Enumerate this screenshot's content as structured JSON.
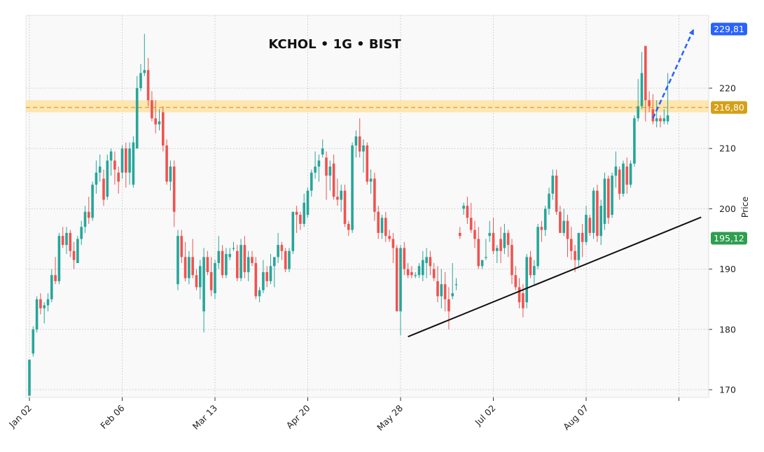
{
  "chart_data": {
    "type": "candlestick",
    "title": "KCHOL • 1G • BIST",
    "ylabel": "Price",
    "xlabel": "",
    "ylim": [
      169,
      232
    ],
    "grid": true,
    "x_tick_labels": [
      "Jan 02",
      "Feb 06",
      "Mar 13",
      "Apr 20",
      "May 28",
      "Jul 02",
      "Aug 07",
      ""
    ],
    "x_tick_bar_index": [
      0,
      25,
      50,
      75,
      100,
      125,
      150,
      175
    ],
    "y_ticks": [
      170,
      180,
      190,
      200,
      210,
      220
    ],
    "colors": {
      "up": "#26a69a",
      "down": "#ef5350",
      "background": "#f9f9f9",
      "zone_fill": "#fde3a7",
      "zone_line": "#e2a43a",
      "trendline": "#111111",
      "projection": "#2962ff"
    },
    "candles": [
      [
        169.0,
        175.0,
        169.0,
        175.0
      ],
      [
        176.0,
        180.5,
        175.5,
        180.0
      ],
      [
        180.0,
        185.5,
        179.5,
        185.0
      ],
      [
        185.0,
        186.0,
        182.5,
        183.5
      ],
      [
        183.5,
        184.5,
        181.0,
        184.0
      ],
      [
        184.0,
        186.0,
        183.0,
        185.0
      ],
      [
        185.0,
        190.0,
        184.5,
        189.0
      ],
      [
        189.0,
        192.0,
        187.5,
        188.0
      ],
      [
        188.0,
        196.0,
        187.5,
        195.5
      ],
      [
        195.5,
        197.0,
        193.5,
        194.0
      ],
      [
        194.0,
        197.0,
        192.5,
        196.0
      ],
      [
        196.0,
        196.5,
        192.0,
        193.0
      ],
      [
        193.0,
        194.5,
        190.0,
        191.5
      ],
      [
        191.0,
        195.5,
        191.0,
        195.0
      ],
      [
        195.0,
        198.0,
        194.0,
        197.0
      ],
      [
        197.0,
        200.5,
        196.0,
        199.5
      ],
      [
        199.5,
        202.0,
        197.5,
        198.5
      ],
      [
        198.5,
        204.5,
        198.0,
        204.0
      ],
      [
        204.0,
        208.0,
        202.5,
        206.0
      ],
      [
        206.0,
        209.0,
        204.5,
        207.0
      ],
      [
        205.0,
        206.5,
        200.5,
        201.5
      ],
      [
        202.0,
        209.0,
        201.5,
        208.0
      ],
      [
        208.0,
        210.0,
        205.5,
        209.5
      ],
      [
        208.0,
        209.5,
        204.0,
        206.5
      ],
      [
        206.0,
        207.0,
        202.5,
        204.5
      ],
      [
        206.0,
        210.5,
        205.0,
        210.0
      ],
      [
        210.0,
        211.0,
        203.5,
        206.0
      ],
      [
        206.0,
        211.0,
        204.0,
        210.0
      ],
      [
        204.0,
        212.0,
        203.5,
        211.0
      ],
      [
        210.0,
        222.0,
        210.0,
        220.0
      ],
      [
        220.0,
        224.0,
        219.5,
        222.5
      ],
      [
        222.5,
        229.0,
        222.0,
        223.0
      ],
      [
        223.0,
        225.0,
        217.0,
        218.0
      ],
      [
        218.0,
        219.5,
        214.5,
        215.0
      ],
      [
        215.0,
        218.0,
        212.5,
        214.0
      ],
      [
        214.0,
        216.5,
        213.0,
        214.5
      ],
      [
        216.0,
        217.0,
        209.5,
        210.5
      ],
      [
        210.5,
        211.5,
        204.0,
        204.5
      ],
      [
        204.5,
        208.0,
        203.0,
        207.0
      ],
      [
        207.0,
        208.0,
        197.0,
        199.5
      ],
      [
        187.5,
        196.5,
        186.5,
        195.5
      ],
      [
        195.5,
        196.5,
        191.0,
        192.0
      ],
      [
        192.0,
        194.5,
        188.0,
        188.5
      ],
      [
        188.5,
        193.0,
        187.5,
        192.0
      ],
      [
        192.0,
        195.0,
        188.5,
        189.0
      ],
      [
        189.0,
        190.0,
        186.5,
        187.0
      ],
      [
        187.0,
        191.5,
        185.0,
        190.5
      ],
      [
        183.0,
        193.5,
        179.5,
        192.0
      ],
      [
        192.0,
        193.0,
        189.0,
        189.5
      ],
      [
        189.5,
        192.0,
        185.5,
        186.5
      ],
      [
        186.0,
        191.5,
        185.0,
        191.0
      ],
      [
        191.0,
        195.5,
        190.0,
        193.0
      ],
      [
        193.0,
        194.0,
        188.5,
        189.0
      ],
      [
        189.0,
        193.5,
        188.5,
        192.5
      ],
      [
        192.0,
        193.5,
        191.5,
        192.5
      ],
      [
        193.5,
        194.5,
        193.0,
        193.5
      ],
      [
        193.0,
        194.0,
        188.0,
        188.5
      ],
      [
        188.5,
        195.0,
        188.0,
        194.0
      ],
      [
        194.0,
        195.5,
        188.5,
        189.5
      ],
      [
        189.5,
        193.0,
        188.0,
        192.0
      ],
      [
        192.0,
        193.0,
        190.5,
        191.0
      ],
      [
        191.0,
        192.0,
        185.0,
        185.5
      ],
      [
        185.5,
        187.0,
        184.5,
        186.5
      ],
      [
        186.5,
        191.5,
        186.0,
        189.5
      ],
      [
        189.5,
        190.5,
        187.0,
        188.0
      ],
      [
        188.0,
        192.5,
        187.5,
        190.5
      ],
      [
        190.5,
        192.0,
        187.0,
        192.0
      ],
      [
        192.0,
        196.0,
        191.0,
        194.0
      ],
      [
        194.0,
        194.5,
        191.5,
        193.0
      ],
      [
        193.0,
        193.5,
        189.5,
        190.0
      ],
      [
        190.0,
        193.5,
        189.5,
        193.0
      ],
      [
        193.0,
        199.5,
        192.5,
        199.5
      ],
      [
        199.5,
        200.5,
        196.0,
        199.0
      ],
      [
        199.0,
        199.5,
        196.5,
        197.5
      ],
      [
        197.5,
        202.5,
        197.0,
        201.0
      ],
      [
        199.0,
        203.5,
        198.5,
        203.0
      ],
      [
        203.0,
        206.5,
        202.0,
        206.0
      ],
      [
        206.0,
        209.5,
        205.0,
        207.0
      ],
      [
        207.0,
        209.0,
        204.5,
        208.0
      ],
      [
        209.0,
        211.5,
        208.5,
        210.0
      ],
      [
        208.5,
        209.5,
        201.5,
        205.5
      ],
      [
        205.5,
        208.0,
        203.0,
        207.0
      ],
      [
        207.5,
        209.0,
        201.5,
        202.0
      ],
      [
        202.0,
        205.0,
        200.5,
        201.5
      ],
      [
        201.5,
        204.0,
        199.5,
        203.0
      ],
      [
        203.0,
        204.0,
        197.0,
        197.5
      ],
      [
        197.5,
        198.0,
        195.5,
        196.5
      ],
      [
        196.5,
        211.0,
        196.0,
        210.5
      ],
      [
        210.5,
        213.0,
        208.5,
        212.0
      ],
      [
        212.0,
        215.0,
        208.5,
        209.5
      ],
      [
        209.5,
        211.5,
        206.0,
        210.5
      ],
      [
        210.5,
        211.0,
        204.0,
        204.5
      ],
      [
        204.5,
        206.5,
        202.5,
        205.0
      ],
      [
        205.0,
        206.0,
        198.0,
        199.5
      ],
      [
        199.5,
        200.5,
        195.0,
        196.0
      ],
      [
        196.0,
        199.0,
        195.0,
        198.5
      ],
      [
        198.5,
        199.5,
        194.5,
        195.5
      ],
      [
        195.5,
        196.5,
        194.5,
        195.0
      ],
      [
        195.0,
        196.0,
        191.0,
        193.5
      ],
      [
        193.5,
        194.0,
        183.0,
        183.0
      ],
      [
        183.0,
        194.0,
        179.0,
        193.5
      ],
      [
        193.5,
        194.5,
        189.0,
        190.0
      ],
      [
        190.0,
        191.0,
        188.5,
        189.0
      ],
      [
        189.5,
        190.5,
        188.5,
        189.0
      ],
      [
        189.0,
        189.5,
        188.5,
        189.0
      ],
      [
        189.0,
        191.0,
        188.5,
        190.5
      ],
      [
        189.0,
        193.0,
        188.0,
        191.5
      ],
      [
        191.0,
        193.5,
        188.5,
        192.0
      ],
      [
        192.0,
        193.0,
        189.0,
        190.5
      ],
      [
        190.0,
        191.0,
        188.0,
        188.5
      ],
      [
        188.0,
        190.5,
        184.5,
        185.5
      ],
      [
        185.5,
        190.0,
        183.5,
        187.5
      ],
      [
        187.5,
        189.5,
        183.0,
        185.0
      ],
      [
        185.0,
        187.0,
        180.0,
        183.0
      ],
      [
        185.5,
        191.0,
        185.0,
        186.0
      ],
      [
        187.5,
        188.5,
        186.5,
        187.5
      ],
      [
        196.0,
        197.0,
        195.0,
        195.5
      ],
      [
        200.0,
        201.0,
        199.0,
        200.5
      ],
      [
        200.5,
        202.0,
        197.5,
        198.5
      ],
      [
        198.5,
        201.0,
        196.0,
        196.5
      ],
      [
        196.5,
        198.0,
        193.5,
        195.0
      ],
      [
        195.0,
        197.0,
        190.0,
        190.5
      ],
      [
        190.5,
        191.5,
        190.0,
        191.5
      ],
      [
        192.0,
        195.0,
        191.5,
        192.0
      ],
      [
        195.5,
        198.0,
        194.5,
        196.0
      ],
      [
        196.0,
        198.5,
        192.5,
        193.0
      ],
      [
        193.0,
        194.0,
        191.0,
        193.5
      ],
      [
        195.0,
        197.0,
        191.0,
        193.0
      ],
      [
        193.5,
        197.5,
        192.5,
        196.0
      ],
      [
        196.0,
        196.5,
        192.0,
        194.0
      ],
      [
        194.0,
        195.0,
        187.5,
        189.0
      ],
      [
        189.0,
        190.5,
        186.5,
        187.0
      ],
      [
        187.0,
        188.5,
        183.5,
        184.5
      ],
      [
        186.0,
        187.5,
        182.0,
        183.5
      ],
      [
        184.5,
        192.5,
        183.5,
        192.0
      ],
      [
        192.0,
        193.0,
        188.5,
        189.0
      ],
      [
        189.0,
        191.5,
        187.5,
        190.5
      ],
      [
        190.5,
        197.5,
        190.0,
        197.0
      ],
      [
        197.0,
        198.0,
        194.5,
        196.5
      ],
      [
        196.5,
        200.5,
        195.5,
        200.0
      ],
      [
        200.0,
        203.5,
        199.0,
        202.5
      ],
      [
        202.5,
        206.5,
        201.5,
        205.5
      ],
      [
        205.5,
        206.5,
        199.0,
        199.5
      ],
      [
        199.5,
        200.5,
        196.0,
        196.0
      ],
      [
        196.0,
        200.0,
        195.5,
        198.0
      ],
      [
        198.0,
        199.0,
        192.0,
        195.0
      ],
      [
        195.0,
        197.0,
        191.5,
        193.0
      ],
      [
        193.0,
        194.0,
        189.5,
        191.5
      ],
      [
        191.5,
        196.0,
        190.5,
        196.0
      ],
      [
        196.0,
        197.5,
        192.0,
        194.5
      ],
      [
        194.5,
        200.5,
        194.0,
        199.0
      ],
      [
        198.5,
        199.0,
        195.5,
        196.0
      ],
      [
        196.0,
        203.5,
        195.0,
        203.0
      ],
      [
        203.0,
        204.0,
        194.5,
        195.5
      ],
      [
        195.5,
        201.5,
        194.0,
        200.5
      ],
      [
        197.5,
        206.0,
        196.5,
        205.0
      ],
      [
        205.0,
        205.5,
        197.5,
        198.5
      ],
      [
        199.0,
        206.0,
        198.5,
        205.5
      ],
      [
        205.5,
        209.5,
        203.5,
        207.0
      ],
      [
        206.5,
        207.0,
        201.5,
        202.5
      ],
      [
        202.5,
        208.0,
        202.0,
        207.5
      ],
      [
        207.0,
        208.5,
        202.5,
        204.0
      ],
      [
        204.0,
        208.0,
        203.5,
        207.5
      ],
      [
        207.5,
        215.5,
        207.0,
        215.0
      ],
      [
        215.0,
        221.5,
        214.5,
        217.0
      ],
      [
        217.0,
        226.0,
        216.5,
        222.5
      ],
      [
        227.0,
        227.0,
        214.5,
        218.0
      ],
      [
        218.0,
        219.5,
        216.0,
        217.0
      ],
      [
        216.5,
        219.0,
        214.0,
        214.5
      ],
      [
        214.5,
        218.0,
        213.5,
        215.0
      ],
      [
        215.0,
        215.5,
        213.5,
        214.5
      ],
      [
        214.5,
        216.5,
        214.0,
        215.0
      ],
      [
        214.5,
        222.5,
        214.0,
        215.5
      ]
    ],
    "support_zone": {
      "low": 216.0,
      "high": 218.0,
      "level": 216.8,
      "label": "216,80"
    },
    "trendline": {
      "from": [
        102,
        178.8
      ],
      "to": [
        181,
        198.6
      ],
      "label": "195,12"
    },
    "projection": {
      "from": [
        168,
        215.0
      ],
      "to": [
        179,
        229.81
      ],
      "label": "229,81"
    }
  }
}
